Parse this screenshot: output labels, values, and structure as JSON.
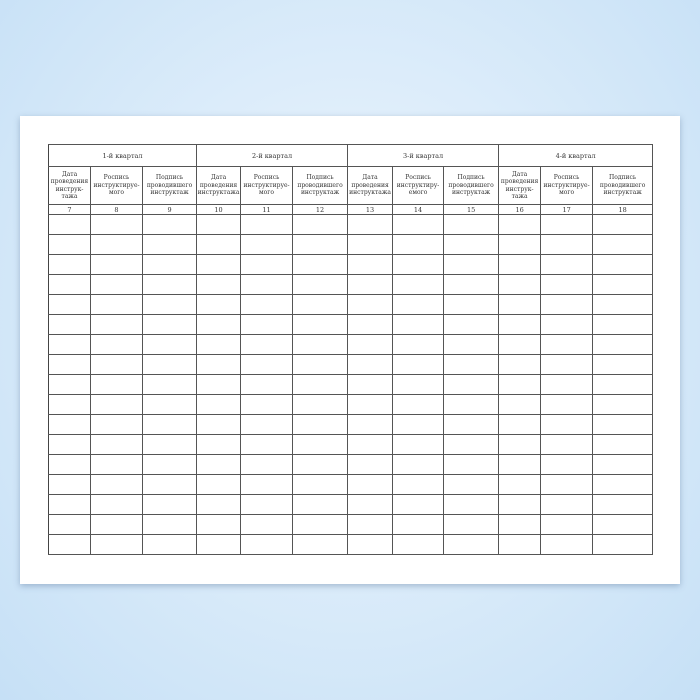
{
  "quarters": [
    {
      "title": "1-й квартал",
      "cols": [
        {
          "label": "Дата\nпроведения\nинструк-\nтажа",
          "num": "7"
        },
        {
          "label": "Роспись\nинструктируе-\nмого",
          "num": "8"
        },
        {
          "label": "Подпись\nпроводившего\nинструктаж",
          "num": "9"
        }
      ]
    },
    {
      "title": "2-й квартал",
      "cols": [
        {
          "label": "Дата\nпроведения\nинструктажа",
          "num": "10"
        },
        {
          "label": "Роспись\nинструктируе-\nмого",
          "num": "11"
        },
        {
          "label": "Подпись\nпроводившего\nинструктаж",
          "num": "12"
        }
      ]
    },
    {
      "title": "3-й квартал",
      "cols": [
        {
          "label": "Дата\nпроведения\nинструктажа",
          "num": "13"
        },
        {
          "label": "Роспись\nинструктиру-\nемого",
          "num": "14"
        },
        {
          "label": "Подпись\nпроводившего\nинструктаж",
          "num": "15"
        }
      ]
    },
    {
      "title": "4-й квартал",
      "cols": [
        {
          "label": "Дата\nпроведения\nинструк-\nтажа",
          "num": "16"
        },
        {
          "label": "Роспись\nинструктируе-\nмого",
          "num": "17"
        },
        {
          "label": "Подпись\nпроводившего\nинструктаж",
          "num": "18"
        }
      ]
    }
  ]
}
